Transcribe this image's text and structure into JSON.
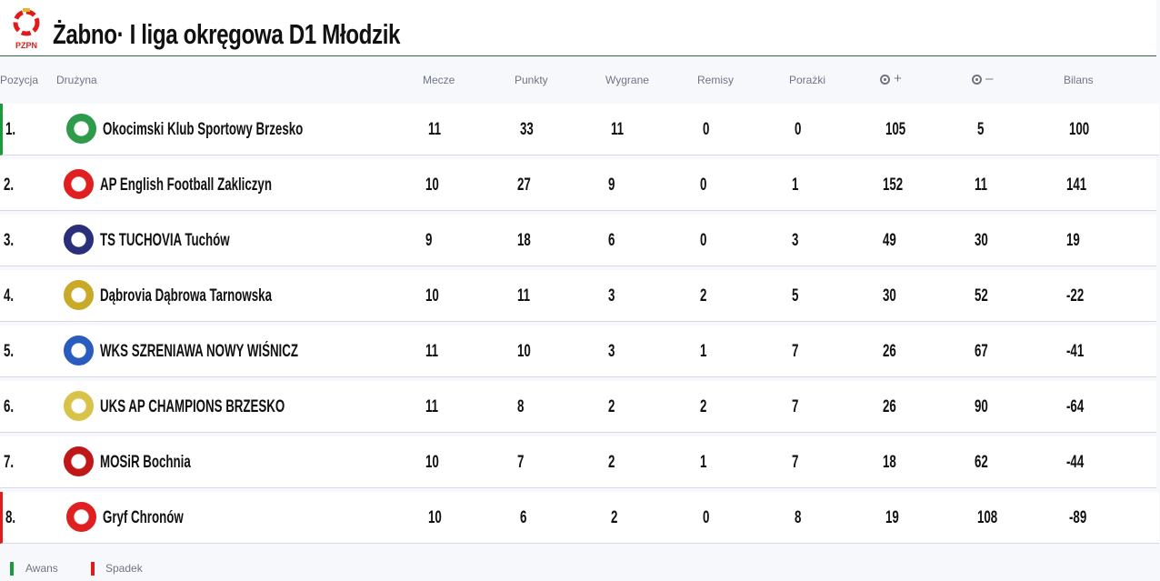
{
  "header": {
    "title": "Żabno· I liga okręgowa D1 Młodzik",
    "logo_text": "PZPN"
  },
  "columns": [
    "Pozycja",
    "Drużyna",
    "Mecze",
    "Punkty",
    "Wygrane",
    "Remisy",
    "Porażki",
    "+",
    "–",
    "Bilans"
  ],
  "column_icons": {
    "goals_for": "soccer-ball-icon",
    "goals_against": "soccer-ball-icon"
  },
  "colors": {
    "promotion": "#1a9a3a",
    "relegation": "#e01b1b"
  },
  "rows": [
    {
      "pos": "1.",
      "team": "Okocimski Klub Sportowy Brzesko",
      "m": "11",
      "p": "33",
      "w": "11",
      "d": "0",
      "l": "0",
      "gf": "105",
      "ga": "5",
      "b": "100",
      "status": "promo",
      "crest": "#2e9b4a"
    },
    {
      "pos": "2.",
      "team": "AP English Football Zakliczyn",
      "m": "10",
      "p": "27",
      "w": "9",
      "d": "0",
      "l": "1",
      "gf": "152",
      "ga": "11",
      "b": "141",
      "status": "",
      "crest": "#e02020"
    },
    {
      "pos": "3.",
      "team": "TS TUCHOVIA Tuchów",
      "m": "9",
      "p": "18",
      "w": "6",
      "d": "0",
      "l": "3",
      "gf": "49",
      "ga": "30",
      "b": "19",
      "status": "",
      "crest": "#2a2f7a"
    },
    {
      "pos": "4.",
      "team": "Dąbrovia Dąbrowa Tarnowska",
      "m": "10",
      "p": "11",
      "w": "3",
      "d": "2",
      "l": "5",
      "gf": "30",
      "ga": "52",
      "b": "-22",
      "status": "",
      "crest": "#c9a928"
    },
    {
      "pos": "5.",
      "team": "WKS SZRENIAWA NOWY WIŚNICZ",
      "m": "11",
      "p": "10",
      "w": "3",
      "d": "1",
      "l": "7",
      "gf": "26",
      "ga": "67",
      "b": "-41",
      "status": "",
      "crest": "#2a5cc0"
    },
    {
      "pos": "6.",
      "team": "UKS AP CHAMPIONS BRZESKO",
      "m": "11",
      "p": "8",
      "w": "2",
      "d": "2",
      "l": "7",
      "gf": "26",
      "ga": "90",
      "b": "-64",
      "status": "",
      "crest": "#d8c24a"
    },
    {
      "pos": "7.",
      "team": "MOSiR Bochnia",
      "m": "10",
      "p": "7",
      "w": "2",
      "d": "1",
      "l": "7",
      "gf": "18",
      "ga": "62",
      "b": "-44",
      "status": "",
      "crest": "#c01818"
    },
    {
      "pos": "8.",
      "team": "Gryf Chronów",
      "m": "10",
      "p": "6",
      "w": "2",
      "d": "0",
      "l": "8",
      "gf": "19",
      "ga": "108",
      "b": "-89",
      "status": "releg",
      "crest": "#e02020"
    }
  ],
  "legend": {
    "promotion": "Awans",
    "relegation": "Spadek"
  }
}
